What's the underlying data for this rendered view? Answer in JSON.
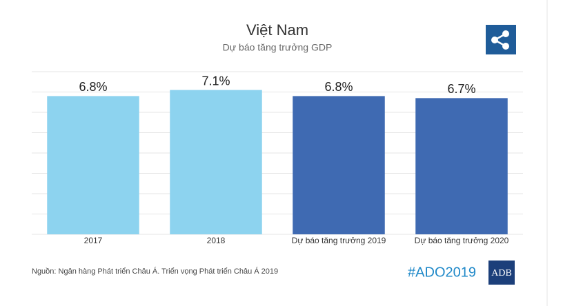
{
  "chart_data": {
    "type": "bar",
    "title": "Việt Nam",
    "subtitle": "Dự báo tăng trưởng GDP",
    "categories": [
      "2017",
      "2018",
      "Dự báo tăng trưởng 2019",
      "Dự báo tăng trưởng 2020"
    ],
    "values": [
      6.8,
      7.1,
      6.8,
      6.7
    ],
    "value_labels": [
      "6.8%",
      "7.1%",
      "6.8%",
      "6.7%"
    ],
    "colors": [
      "#8dd3ef",
      "#8dd3ef",
      "#3f6ab2",
      "#3f6ab2"
    ],
    "ylim": [
      0,
      8
    ],
    "yticks": [
      0,
      1,
      2,
      3,
      4,
      5,
      6,
      7,
      8
    ],
    "grid": true
  },
  "footer": {
    "source": "Nguồn: Ngân hàng Phát triển Châu Á. Triển vọng Phát triển Châu Á 2019",
    "hashtag": "#ADO2019",
    "logo": "ADB"
  }
}
